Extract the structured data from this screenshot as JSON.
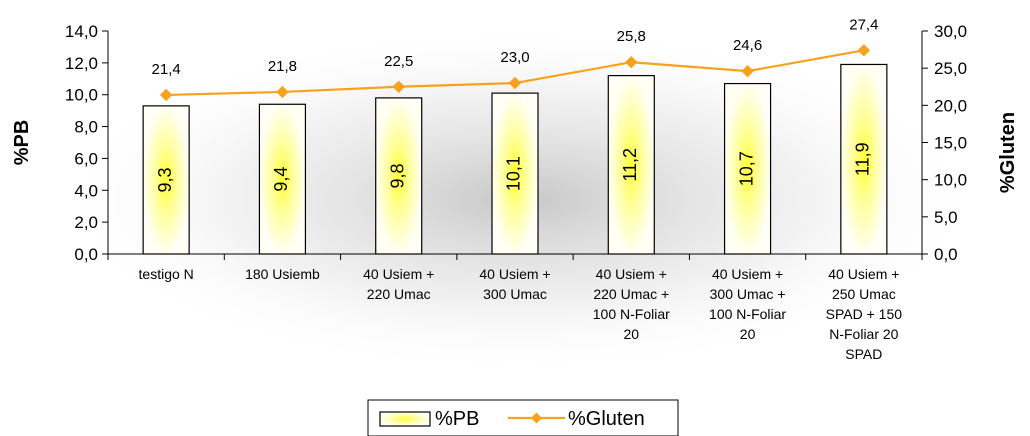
{
  "chart_data": {
    "type": "bar",
    "categories": [
      [
        "testigo N"
      ],
      [
        "180 Usiemb"
      ],
      [
        "40 Usiem +",
        "220 Umac"
      ],
      [
        "40 Usiem +",
        "300 Umac"
      ],
      [
        "40 Usiem +",
        "220 Umac +",
        "100 N-Foliar",
        "20"
      ],
      [
        "40 Usiem +",
        "300 Umac +",
        "100 N-Foliar",
        "20"
      ],
      [
        "40 Usiem +",
        "250 Umac",
        "SPAD + 150",
        "N-Foliar 20",
        "SPAD"
      ]
    ],
    "series": [
      {
        "name": "%PB",
        "type": "bar",
        "axis": "left",
        "values": [
          9.3,
          9.4,
          9.8,
          10.1,
          11.2,
          10.7,
          11.9
        ],
        "labels": [
          "9,3",
          "9,4",
          "9,8",
          "10,1",
          "11,2",
          "10,7",
          "11,9"
        ]
      },
      {
        "name": "%Gluten",
        "type": "line",
        "axis": "right",
        "values": [
          21.4,
          21.8,
          22.5,
          23.0,
          25.8,
          24.6,
          27.4
        ],
        "labels": [
          "21,4",
          "21,8",
          "22,5",
          "23,0",
          "25,8",
          "24,6",
          "27,4"
        ]
      }
    ],
    "ylabel": "%PB",
    "y2label": "%Gluten",
    "ylim": [
      0,
      14
    ],
    "y2lim": [
      0,
      30
    ],
    "yticks": [
      "0,0",
      "2,0",
      "4,0",
      "6,0",
      "8,0",
      "10,0",
      "12,0",
      "14,0"
    ],
    "y2ticks": [
      "0,0",
      "5,0",
      "10,0",
      "15,0",
      "20,0",
      "25,0",
      "30,0"
    ],
    "legend": "bottom",
    "grid": false,
    "colors": {
      "line": "#F7A21B",
      "bar_edge": "#000000",
      "bar_center": "#FFFF33",
      "bar_fill": "#FFFFF0"
    }
  }
}
